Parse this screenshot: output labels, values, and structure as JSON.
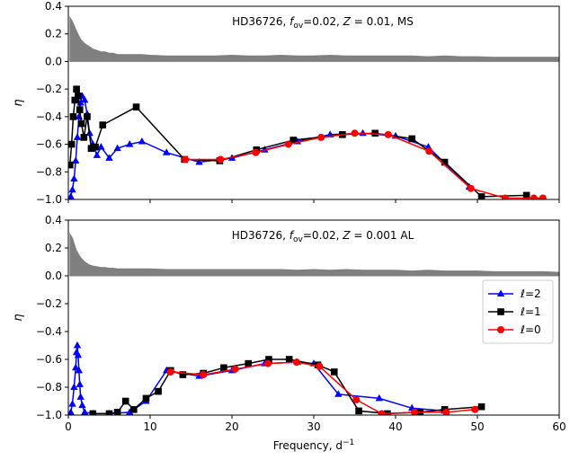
{
  "chart_data": [
    {
      "type": "line",
      "title": "HD36726, f_ov=0.02, Z = 0.01, MS",
      "title_parts": {
        "star": "HD36726, ",
        "f": "f",
        "sub": "ov",
        "mid": "=0.02, ",
        "z": "Z",
        "rest": " = 0.01, MS"
      },
      "xlabel": "Frequency, d⁻¹",
      "ylabel": "η",
      "xlim": [
        0,
        60
      ],
      "ylim": [
        -1.0,
        0.4
      ],
      "yticks": [
        -1.0,
        -0.8,
        -0.6,
        -0.4,
        -0.2,
        0.0,
        0.2,
        0.4
      ],
      "ytick_labels": [
        "−1.0",
        "−0.8",
        "−0.6",
        "−0.4",
        "−0.2",
        "0.0",
        "0.2",
        "0.4"
      ],
      "grid": false,
      "series": [
        {
          "name": "ℓ=2",
          "color": "#0000ff",
          "marker": "triangle",
          "x": [
            0.3,
            0.5,
            0.7,
            0.9,
            1.1,
            1.3,
            1.5,
            1.7,
            2.0,
            2.3,
            2.6,
            3.0,
            3.5,
            4.0,
            5.0,
            6.0,
            7.5,
            9.0,
            12.0,
            16.0,
            20.0,
            24.0,
            28.0,
            32.0,
            36.0,
            40.0,
            44.0,
            49.0
          ],
          "y": [
            -0.98,
            -0.93,
            -0.85,
            -0.72,
            -0.55,
            -0.4,
            -0.3,
            -0.25,
            -0.28,
            -0.38,
            -0.52,
            -0.6,
            -0.68,
            -0.62,
            -0.7,
            -0.63,
            -0.6,
            -0.58,
            -0.66,
            -0.73,
            -0.7,
            -0.64,
            -0.58,
            -0.53,
            -0.52,
            -0.54,
            -0.62,
            -0.91
          ]
        },
        {
          "name": "ℓ=1",
          "color": "#000000",
          "marker": "square",
          "x": [
            0.2,
            0.4,
            0.6,
            0.8,
            1.0,
            1.2,
            1.4,
            1.6,
            1.9,
            2.3,
            2.8,
            3.3,
            4.2,
            8.3,
            14.2,
            18.5,
            23.0,
            27.5,
            33.5,
            37.5,
            42.0,
            46.0,
            50.5,
            56.0
          ],
          "y": [
            -0.75,
            -0.6,
            -0.4,
            -0.28,
            -0.2,
            -0.25,
            -0.35,
            -0.45,
            -0.55,
            -0.4,
            -0.63,
            -0.62,
            -0.46,
            -0.33,
            -0.71,
            -0.72,
            -0.64,
            -0.57,
            -0.53,
            -0.52,
            -0.56,
            -0.73,
            -0.98,
            -0.97
          ]
        },
        {
          "name": "ℓ=0",
          "color": "#ff0000",
          "marker": "circle",
          "x": [
            14.3,
            18.6,
            22.9,
            26.9,
            30.9,
            35.0,
            39.1,
            44.1,
            49.2,
            53.4,
            56.9,
            58.0
          ],
          "y": [
            -0.71,
            -0.71,
            -0.66,
            -0.6,
            -0.55,
            -0.52,
            -0.53,
            -0.65,
            -0.92,
            -0.99,
            -0.99,
            -0.99
          ]
        }
      ],
      "gray_series": {
        "color": "#7f7f7f",
        "x": [
          0.2,
          0.5,
          1.0,
          1.5,
          2.0,
          2.5,
          3.0,
          3.5,
          4.0,
          4.5,
          5.0,
          5.5,
          6.0,
          7.0,
          8.0,
          9.0,
          10.0,
          12.0,
          14.0,
          16.0,
          18.0,
          20.0,
          22.0,
          24.0,
          26.0,
          28.0,
          30.0,
          32.0,
          34.0,
          36.0,
          38.0,
          40.0,
          42.0,
          44.0,
          46.0,
          48.0,
          50.0,
          52.0,
          54.0,
          56.0,
          58.0,
          60.0
        ],
        "y": [
          0.32,
          0.29,
          0.22,
          0.16,
          0.13,
          0.11,
          0.09,
          0.08,
          0.07,
          0.07,
          0.06,
          0.06,
          0.05,
          0.05,
          0.05,
          0.05,
          0.045,
          0.04,
          0.04,
          0.04,
          0.04,
          0.045,
          0.04,
          0.04,
          0.045,
          0.04,
          0.04,
          0.045,
          0.04,
          0.04,
          0.04,
          0.04,
          0.04,
          0.035,
          0.04,
          0.035,
          0.035,
          0.03,
          0.03,
          0.03,
          0.03,
          0.03
        ]
      }
    },
    {
      "type": "line",
      "title": "HD36726, f_ov=0.02, Z = 0.001 AL",
      "title_parts": {
        "star": "HD36726, ",
        "f": "f",
        "sub": "ov",
        "mid": "=0.02, ",
        "z": "Z",
        "rest": " = 0.001 AL"
      },
      "xlabel": "Frequency, d⁻¹",
      "ylabel": "η",
      "xlim": [
        0,
        60
      ],
      "ylim": [
        -1.0,
        0.4
      ],
      "xticks": [
        0,
        10,
        20,
        30,
        40,
        50,
        60
      ],
      "yticks": [
        -1.0,
        -0.8,
        -0.6,
        -0.4,
        -0.2,
        0.0,
        0.2,
        0.4
      ],
      "ytick_labels": [
        "−1.0",
        "−0.8",
        "−0.6",
        "−0.4",
        "−0.2",
        "0.0",
        "0.2",
        "0.4"
      ],
      "grid": false,
      "legend": {
        "position": "right",
        "entries": [
          "ℓ=2",
          "ℓ=1",
          "ℓ=0"
        ]
      },
      "series": [
        {
          "name": "ℓ=2",
          "color": "#0000ff",
          "marker": "triangle",
          "x": [
            0.3,
            0.5,
            0.7,
            0.9,
            1.0,
            1.1,
            1.2,
            1.3,
            1.4,
            1.5,
            1.7,
            2.0,
            3.0,
            5.0,
            7.5,
            9.5,
            12.0,
            16.0,
            20.0,
            24.0,
            28.0,
            30.0,
            33.0,
            38.0,
            42.0,
            46.0
          ],
          "y": [
            -0.98,
            -0.92,
            -0.8,
            -0.66,
            -0.55,
            -0.5,
            -0.57,
            -0.68,
            -0.78,
            -0.87,
            -0.93,
            -0.98,
            -0.99,
            -0.99,
            -0.98,
            -0.9,
            -0.68,
            -0.72,
            -0.68,
            -0.63,
            -0.62,
            -0.63,
            -0.85,
            -0.88,
            -0.95,
            -0.97
          ]
        },
        {
          "name": "ℓ=1",
          "color": "#000000",
          "marker": "square",
          "x": [
            3.0,
            5.0,
            6.0,
            7.0,
            8.0,
            9.5,
            11.0,
            12.5,
            14.0,
            16.5,
            19.0,
            22.0,
            24.5,
            27.0,
            30.5,
            32.5,
            35.5,
            39.0,
            43.0,
            46.0,
            50.5
          ],
          "y": [
            -0.99,
            -0.99,
            -0.98,
            -0.9,
            -0.96,
            -0.88,
            -0.83,
            -0.68,
            -0.71,
            -0.7,
            -0.66,
            -0.63,
            -0.6,
            -0.6,
            -0.64,
            -0.69,
            -0.97,
            -0.99,
            -0.98,
            -0.96,
            -0.94
          ]
        },
        {
          "name": "ℓ=0",
          "color": "#ff0000",
          "marker": "circle",
          "x": [
            12.5,
            16.5,
            20.4,
            24.4,
            27.9,
            30.7,
            35.2,
            38.3,
            42.3,
            46.2,
            49.7
          ],
          "y": [
            -0.69,
            -0.71,
            -0.67,
            -0.63,
            -0.62,
            -0.65,
            -0.89,
            -0.99,
            -0.98,
            -0.98,
            -0.96
          ]
        }
      ],
      "gray_series": {
        "color": "#7f7f7f",
        "x": [
          0.2,
          0.5,
          1.0,
          1.5,
          2.0,
          2.5,
          3.0,
          3.5,
          4.0,
          4.5,
          5.0,
          5.5,
          6.0,
          7.0,
          8.0,
          9.0,
          10.0,
          12.0,
          14.0,
          16.0,
          18.0,
          20.0,
          22.0,
          24.0,
          26.0,
          28.0,
          30.0,
          32.0,
          34.0,
          36.0,
          38.0,
          40.0,
          42.0,
          44.0,
          46.0,
          48.0,
          50.0,
          52.0,
          54.0,
          56.0,
          58.0,
          60.0
        ],
        "y": [
          0.3,
          0.27,
          0.18,
          0.13,
          0.1,
          0.08,
          0.07,
          0.065,
          0.06,
          0.06,
          0.055,
          0.055,
          0.05,
          0.05,
          0.05,
          0.05,
          0.05,
          0.045,
          0.045,
          0.045,
          0.045,
          0.045,
          0.045,
          0.045,
          0.045,
          0.04,
          0.045,
          0.04,
          0.045,
          0.04,
          0.04,
          0.04,
          0.035,
          0.04,
          0.035,
          0.035,
          0.035,
          0.03,
          0.03,
          0.03,
          0.03,
          0.025
        ]
      }
    }
  ]
}
